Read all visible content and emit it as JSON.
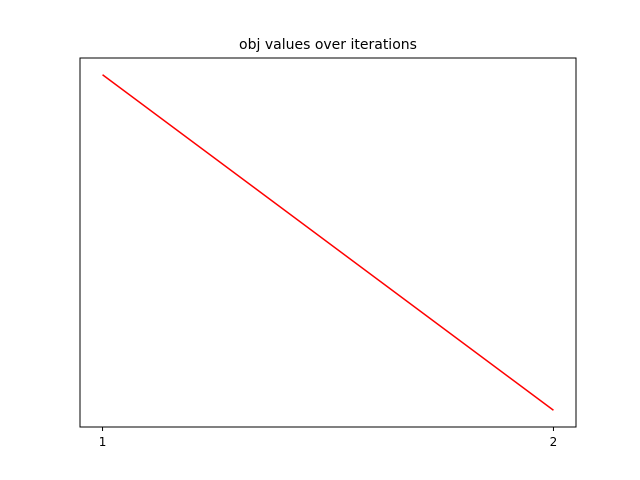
{
  "chart_data": {
    "type": "line",
    "title": "obj values over iterations",
    "xlabel": "",
    "ylabel": "",
    "x": [
      1,
      2
    ],
    "x_tick_labels": [
      "1",
      "2"
    ],
    "series": [
      {
        "values": [
          1.0,
          0.0
        ],
        "color": "#ff0000"
      }
    ],
    "xlim": [
      0.95,
      2.05
    ],
    "ylim": [
      -0.05,
      1.05
    ],
    "grid": false,
    "legend": "none",
    "y_ticks_shown": false
  }
}
